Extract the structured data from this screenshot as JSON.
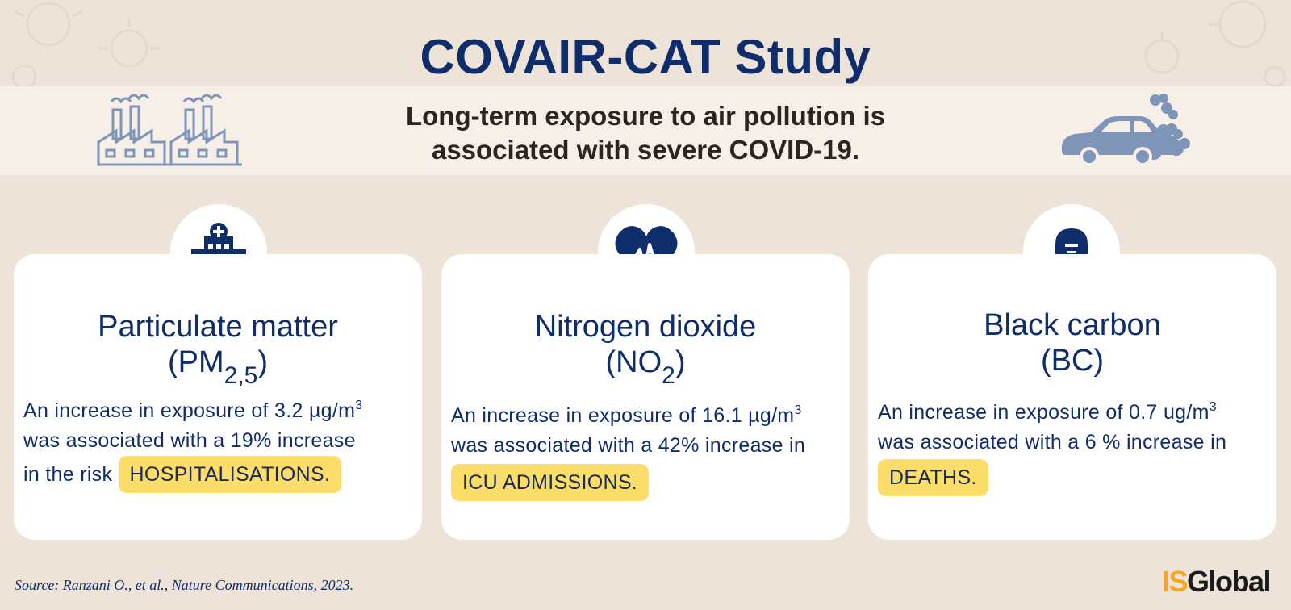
{
  "header": {
    "title": "COVAIR-CAT Study",
    "subtitle_line1": "Long-term exposure to air pollution is",
    "subtitle_line2": "associated with severe COVID-19."
  },
  "cards": [
    {
      "icon": "hospital-icon",
      "title_line1": "Particulate matter",
      "title_line2_prefix": "(PM",
      "title_line2_sub": "2,5",
      "title_line2_suffix": ")",
      "body_line1": "An increase in exposure of 3.2 µg/m",
      "body_sup": "3",
      "body_line2": "was associated with a 19% increase",
      "body_line3": "in the risk",
      "highlight": "HOSPITALISATIONS."
    },
    {
      "icon": "heartbeat-icon",
      "title_line1": "Nitrogen dioxide",
      "title_line2_prefix": "(NO",
      "title_line2_sub": "2",
      "title_line2_suffix": ")",
      "body_line1": "An increase in exposure of 16.1 µg/m",
      "body_sup": "3",
      "body_line2": "was associated with a 42% increase in",
      "highlight": "ICU ADMISSIONS."
    },
    {
      "icon": "tombstone-icon",
      "title_line1": "Black carbon",
      "title_line2": "(BC)",
      "body_line1": "An increase in exposure of 0.7 ug/m",
      "body_sup": "3",
      "body_line2": "was associated with a 6 % increase in",
      "highlight": "DEATHS."
    }
  ],
  "footer": {
    "source": "Source: Ranzani O., et al., Nature Communications, 2023.",
    "logo_is": "IS",
    "logo_global": "Global"
  },
  "colors": {
    "background": "#eee3d8",
    "band": "#f5efe8",
    "navy": "#0f2c6b",
    "highlight": "#fbdd6a",
    "icon_grey_blue": "#7f95b8"
  }
}
